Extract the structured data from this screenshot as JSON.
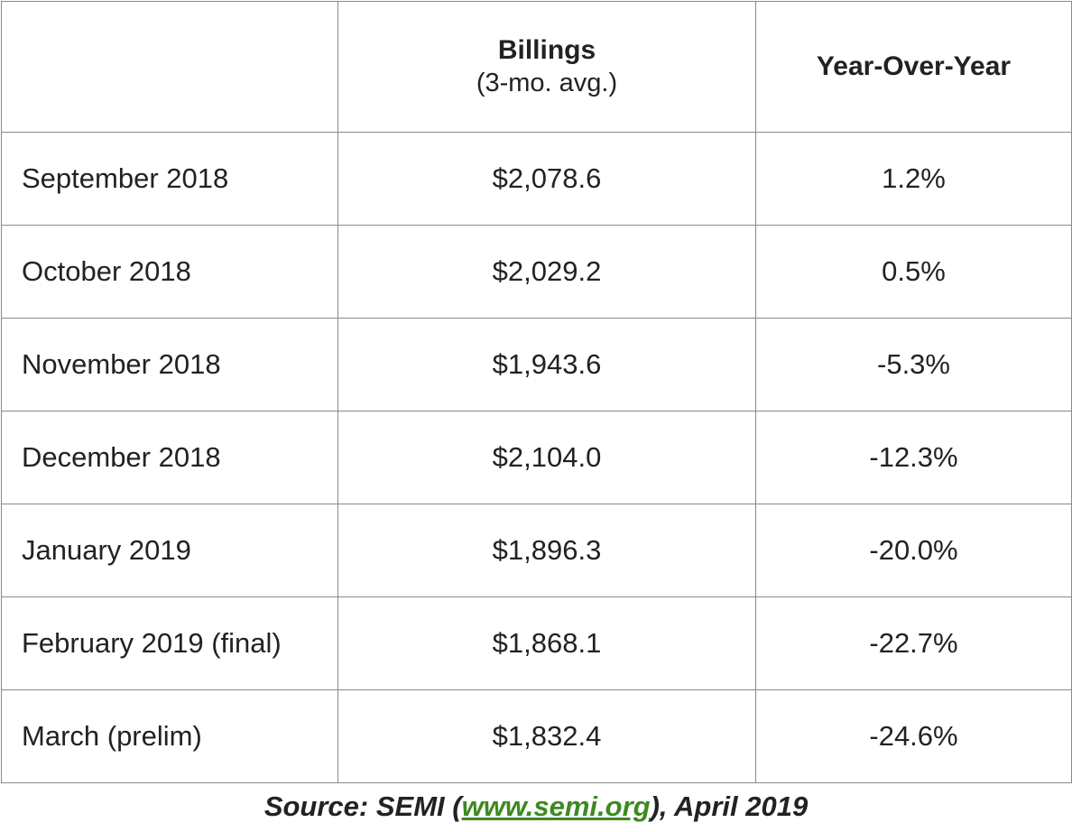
{
  "table": {
    "headers": {
      "corner": "",
      "billings_title": "Billings",
      "billings_subtitle": "(3-mo. avg.)",
      "yoy_title": "Year-Over-Year"
    },
    "rows": [
      {
        "month": "September 2018",
        "billings": "$2,078.6",
        "yoy": "1.2%"
      },
      {
        "month": "October 2018",
        "billings": "$2,029.2",
        "yoy": "0.5%"
      },
      {
        "month": "November 2018",
        "billings": "$1,943.6",
        "yoy": "-5.3%"
      },
      {
        "month": "December 2018",
        "billings": "$2,104.0",
        "yoy": "-12.3%"
      },
      {
        "month": "January 2019",
        "billings": "$1,896.3",
        "yoy": "-20.0%"
      },
      {
        "month": "February 2019 (final)",
        "billings": "$1,868.1",
        "yoy": "-22.7%"
      },
      {
        "month": "March (prelim)",
        "billings": "$1,832.4",
        "yoy": "-24.6%"
      }
    ]
  },
  "source": {
    "prefix": "Source: SEMI (",
    "link_text": "www.semi.org",
    "suffix": "), April 2019",
    "link_color": "#3d8a1f"
  }
}
